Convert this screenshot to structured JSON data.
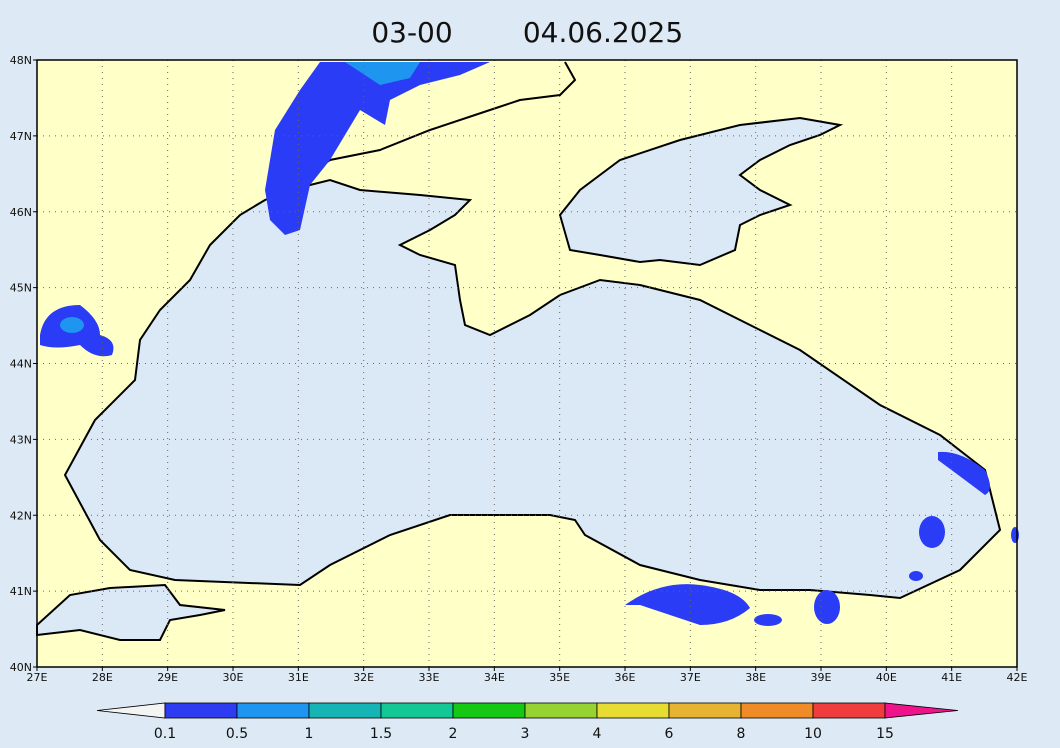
{
  "title": {
    "time": "03-00",
    "date": "04.06.2025"
  },
  "lon_ticks": [
    "27E",
    "28E",
    "29E",
    "30E",
    "31E",
    "32E",
    "33E",
    "34E",
    "35E",
    "36E",
    "37E",
    "38E",
    "39E",
    "40E",
    "41E",
    "42E"
  ],
  "lat_ticks": [
    "40N",
    "41N",
    "42N",
    "43N",
    "44N",
    "45N",
    "46N",
    "47N",
    "48N"
  ],
  "colorbar": {
    "labels": [
      "0.1",
      "0.5",
      "1",
      "1.5",
      "2",
      "3",
      "4",
      "6",
      "8",
      "10",
      "15"
    ],
    "colors": [
      "#f4f4f4",
      "#2d3cf0",
      "#1e96f0",
      "#16b4b4",
      "#14c896",
      "#14c814",
      "#96d232",
      "#e6dc32",
      "#e6b432",
      "#f08c28",
      "#f03c3c",
      "#f0148c"
    ]
  }
}
